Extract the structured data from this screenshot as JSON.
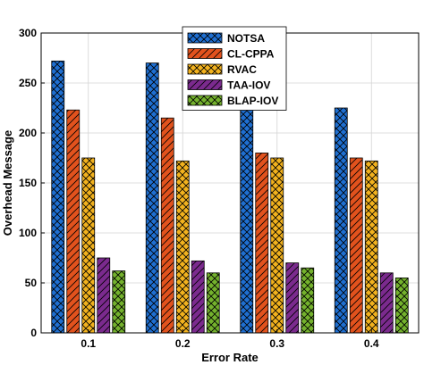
{
  "chart_data": {
    "type": "bar",
    "categories": [
      "0.1",
      "0.2",
      "0.3",
      "0.4"
    ],
    "xlabel": "Error Rate",
    "ylabel": "Overhead Message",
    "ylim": [
      0,
      300
    ],
    "yticks": [
      "0",
      "50",
      "100",
      "150",
      "200",
      "250",
      "300"
    ],
    "grid": true,
    "legend_position": "top-center",
    "series": [
      {
        "name": "NOTSA",
        "values": [
          272,
          270,
          225,
          225
        ],
        "color": "#1f6fd1",
        "pattern": "crosshatch"
      },
      {
        "name": "CL-CPPA",
        "values": [
          223,
          215,
          180,
          175
        ],
        "color": "#e2521d",
        "pattern": "diagonal"
      },
      {
        "name": "RVAC",
        "values": [
          175,
          172,
          175,
          172
        ],
        "color": "#f2b21e",
        "pattern": "crosshatch"
      },
      {
        "name": "TAA-IOV",
        "values": [
          75,
          72,
          70,
          60
        ],
        "color": "#7b2a8e",
        "pattern": "diagonal"
      },
      {
        "name": "BLAP-IOV",
        "values": [
          62,
          60,
          65,
          55
        ],
        "color": "#74b22d",
        "pattern": "crosshatch"
      }
    ]
  }
}
